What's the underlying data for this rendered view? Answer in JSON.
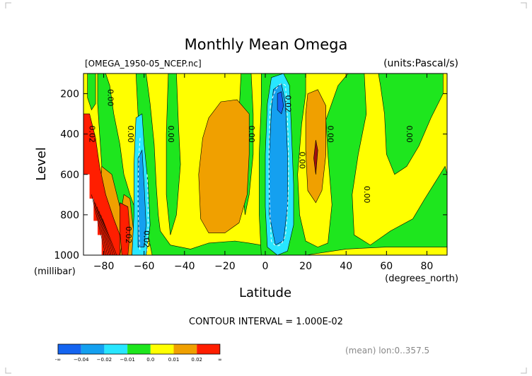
{
  "chart_data": {
    "type": "contour",
    "title": "Monthly Mean Omega",
    "file_label": "[OMEGA_1950-05_NCEP.nc]",
    "units_label": "(units:Pascal/s)",
    "xlabel": "Latitude",
    "x_units": "(degrees_north)",
    "ylabel": "Level",
    "y_units": "(millibar)",
    "xlim": [
      -90,
      90
    ],
    "ylim": [
      1000,
      100
    ],
    "x_ticks": [
      -80,
      -60,
      -40,
      -20,
      0,
      20,
      40,
      60,
      80
    ],
    "y_ticks": [
      200,
      400,
      600,
      800,
      1000
    ],
    "contour_interval_text": "CONTOUR INTERVAL = 1.000E-02",
    "footer_text": "(mean) lon:0..357.5",
    "contour_labels": [
      {
        "text": "0.00",
        "lat": -78,
        "level": 220
      },
      {
        "text": "0.00",
        "lat": -68,
        "level": 400
      },
      {
        "text": "0.00",
        "lat": -48,
        "level": 400
      },
      {
        "text": "0.00",
        "lat": -8,
        "level": 400
      },
      {
        "text": "0.02",
        "lat": 10,
        "level": 250
      },
      {
        "text": "0.00",
        "lat": 17,
        "level": 530
      },
      {
        "text": "0.00",
        "lat": 31,
        "level": 400
      },
      {
        "text": "0.00",
        "lat": 49,
        "level": 700
      },
      {
        "text": "0.00",
        "lat": 70,
        "level": 400
      },
      {
        "text": "0.02",
        "lat": -87,
        "level": 400
      },
      {
        "text": "0.02",
        "lat": -69,
        "level": 900
      },
      {
        "text": "0.02",
        "lat": -60,
        "level": 920
      }
    ],
    "legend": {
      "colors": [
        "#1464f0",
        "#14a0f0",
        "#28e6ff",
        "#1ee61e",
        "#ffff00",
        "#f0a000",
        "#ff1e00"
      ],
      "bounds": [
        "-∞",
        "−0.04",
        "−0.02",
        "−0.01",
        "0.0",
        "0.01",
        "0.02",
        "∞"
      ]
    }
  }
}
